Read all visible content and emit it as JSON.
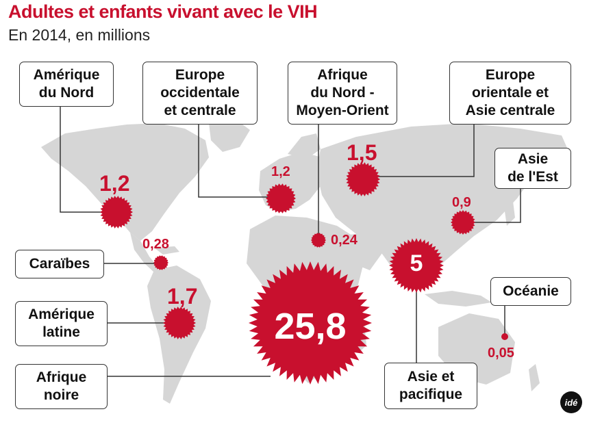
{
  "title": "Adultes et enfants vivant avec le VIH",
  "subtitle": "En 2014, en millions",
  "colors": {
    "accent": "#c8102e",
    "map": "#d6d6d6",
    "line": "#333333"
  },
  "regions": {
    "amerique_nord": {
      "label": "Amérique\ndu Nord",
      "value": "1,2"
    },
    "europe_occ": {
      "label": "Europe\noccidentale\net centrale",
      "value": "1,2"
    },
    "afrique_nord": {
      "label": "Afrique\ndu Nord -\nMoyen-Orient",
      "value": "0,24"
    },
    "europe_or": {
      "label": "Europe\norientale et\nAsie centrale",
      "value": "1,5"
    },
    "asie_est": {
      "label": "Asie\nde l'Est",
      "value": "0,9"
    },
    "caraibes": {
      "label": "Caraïbes",
      "value": "0,28"
    },
    "amerique_lat": {
      "label": "Amérique\nlatine",
      "value": "1,7"
    },
    "afrique_noire": {
      "label": "Afrique\nnoire",
      "value": "25,8"
    },
    "oceanie": {
      "label": "Océanie",
      "value": "0,05"
    },
    "asie_pac": {
      "label": "Asie et\npacifique",
      "value": "5"
    }
  },
  "logo": "idé"
}
